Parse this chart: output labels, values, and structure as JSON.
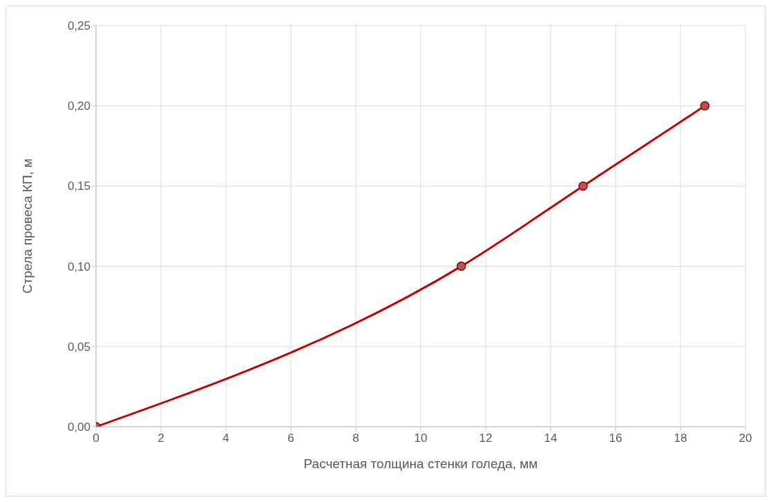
{
  "chart_data": {
    "type": "line",
    "xlabel": "Расчетная толщина стенки голеда, мм",
    "ylabel": "Стрела провеса КП, м",
    "x": [
      0,
      11.25,
      15,
      18.75
    ],
    "series": [
      {
        "color": "#c00000",
        "values": [
          0,
          0.1,
          0.15,
          0.2
        ]
      }
    ],
    "xlim": [
      0,
      20
    ],
    "xticks": [
      0,
      2,
      4,
      6,
      8,
      10,
      12,
      14,
      16,
      18,
      20
    ],
    "ylim": [
      0,
      0.25
    ],
    "yticks": [
      {
        "value": 0,
        "label": "0,00"
      },
      {
        "value": 0.05,
        "label": "0,05"
      },
      {
        "value": 0.1,
        "label": "0,10"
      },
      {
        "value": 0.15,
        "label": "0,15"
      },
      {
        "value": 0.2,
        "label": "0,20"
      },
      {
        "value": 0.25,
        "label": "0,25"
      }
    ],
    "grid": true,
    "marker": "circle",
    "line_style": "solid"
  }
}
